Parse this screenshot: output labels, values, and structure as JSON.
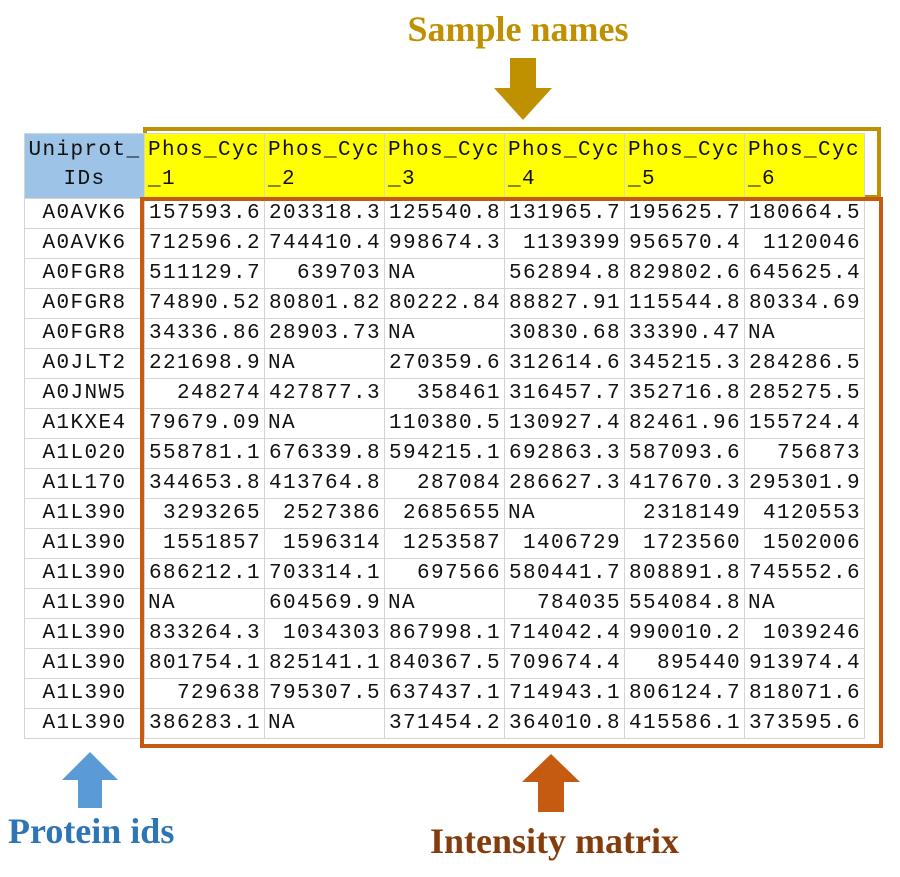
{
  "labels": {
    "sample_names": "Sample names",
    "protein_ids": "Protein ids",
    "intensity_matrix": "Intensity matrix"
  },
  "colors": {
    "sample_names": "#bf9000",
    "protein_ids": "#2e75b6",
    "protein_arrow": "#5b9bd5",
    "intensity_matrix": "#843c0c",
    "intensity_arrow": "#c55a11",
    "header_fill": "#ffff00",
    "id_header_fill": "#9dc3e6"
  },
  "icons": {
    "sample_arrow": "arrow-down",
    "protein_arrow": "arrow-up",
    "intensity_arrow": "arrow-up"
  },
  "table": {
    "headers": [
      "Uniprot_IDs",
      "Phos_Cyc_1",
      "Phos_Cyc_2",
      "Phos_Cyc_3",
      "Phos_Cyc_4",
      "Phos_Cyc_5",
      "Phos_Cyc_6"
    ],
    "rows": [
      [
        "A0AVK6",
        "157593.6",
        "203318.3",
        "125540.8",
        "131965.7",
        "195625.7",
        "180664.5"
      ],
      [
        "A0AVK6",
        "712596.2",
        "744410.4",
        "998674.3",
        "1139399",
        "956570.4",
        "1120046"
      ],
      [
        "A0FGR8",
        "511129.7",
        "639703",
        "NA",
        "562894.8",
        "829802.6",
        "645625.4"
      ],
      [
        "A0FGR8",
        "74890.52",
        "80801.82",
        "80222.84",
        "88827.91",
        "115544.8",
        "80334.69"
      ],
      [
        "A0FGR8",
        "34336.86",
        "28903.73",
        "NA",
        "30830.68",
        "33390.47",
        "NA"
      ],
      [
        "A0JLT2",
        "221698.9",
        "NA",
        "270359.6",
        "312614.6",
        "345215.3",
        "284286.5"
      ],
      [
        "A0JNW5",
        "248274",
        "427877.3",
        "358461",
        "316457.7",
        "352716.8",
        "285275.5"
      ],
      [
        "A1KXE4",
        "79679.09",
        "NA",
        "110380.5",
        "130927.4",
        "82461.96",
        "155724.4"
      ],
      [
        "A1L020",
        "558781.1",
        "676339.8",
        "594215.1",
        "692863.3",
        "587093.6",
        "756873"
      ],
      [
        "A1L170",
        "344653.8",
        "413764.8",
        "287084",
        "286627.3",
        "417670.3",
        "295301.9"
      ],
      [
        "A1L390",
        "3293265",
        "2527386",
        "2685655",
        "NA",
        "2318149",
        "4120553"
      ],
      [
        "A1L390",
        "1551857",
        "1596314",
        "1253587",
        "1406729",
        "1723560",
        "1502006"
      ],
      [
        "A1L390",
        "686212.1",
        "703314.1",
        "697566",
        "580441.7",
        "808891.8",
        "745552.6"
      ],
      [
        "A1L390",
        "NA",
        "604569.9",
        "NA",
        "784035",
        "554084.8",
        "NA"
      ],
      [
        "A1L390",
        "833264.3",
        "1034303",
        "867998.1",
        "714042.4",
        "990010.2",
        "1039246"
      ],
      [
        "A1L390",
        "801754.1",
        "825141.1",
        "840367.5",
        "709674.4",
        "895440",
        "913974.4"
      ],
      [
        "A1L390",
        "729638",
        "795307.5",
        "637437.1",
        "714943.1",
        "806124.7",
        "818071.6"
      ],
      [
        "A1L390",
        "386283.1",
        "NA",
        "371454.2",
        "364010.8",
        "415586.1",
        "373595.6"
      ]
    ]
  }
}
